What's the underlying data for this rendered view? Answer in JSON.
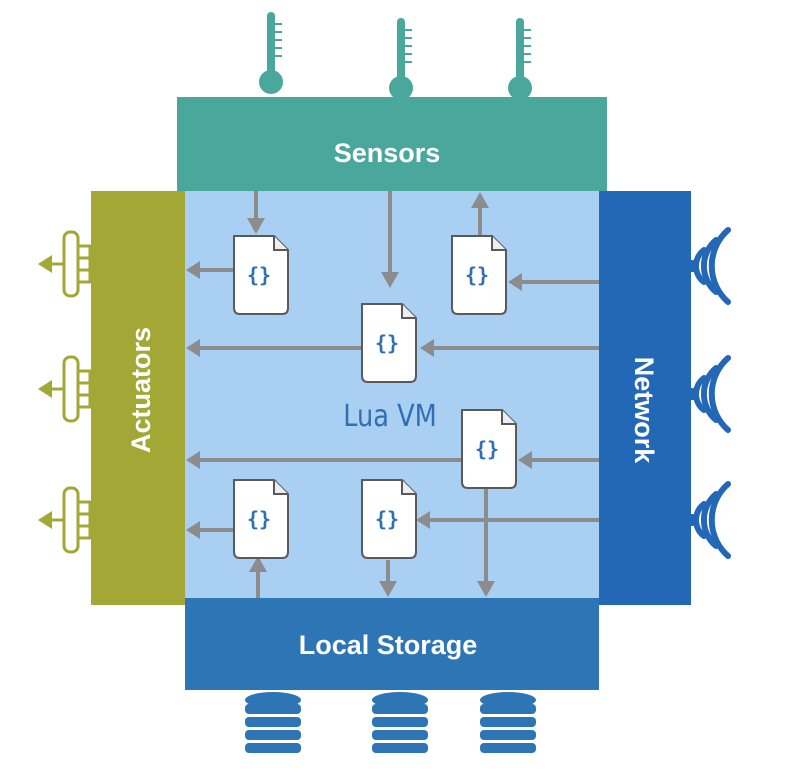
{
  "diagram": {
    "vm_label": "Lua VM",
    "script_glyph": "{}",
    "blocks": {
      "sensors": "Sensors",
      "actuators": "Actuators",
      "network": "Network",
      "local_storage": "Local Storage"
    },
    "colors": {
      "sensors": "#49a79b",
      "actuators": "#a3a735",
      "network": "#2367b7",
      "storage": "#2e75b6",
      "vm": "#a9cff2",
      "arrow": "#8c8c8c"
    },
    "icons": {
      "sensor": "thermometer-icon",
      "actuator": "piston-icon",
      "network": "wifi-icon",
      "storage": "database-icon",
      "script": "code-file-icon"
    }
  }
}
